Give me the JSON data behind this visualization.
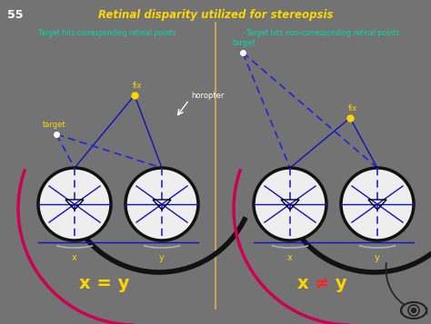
{
  "bg_color": "#737373",
  "title": "Retinal disparity utilized for stereopsis",
  "title_color": "#FFD700",
  "slide_num": "55",
  "slide_num_color": "#FFFFFF",
  "left_caption": "Target hits corresponding retinal points",
  "right_caption": "Target hits non-corresponding retinal points",
  "caption_color": "#00DDAA",
  "equation_color": "#FFD700",
  "eq_neq_color": "#FF2222",
  "divider_color": "#C8A060",
  "eye_fill": "#EEEEEE",
  "eye_outline": "#111111",
  "fix_color": "#FFD700",
  "target_left_color": "#FFFFFF",
  "horopter_color": "#CC0055",
  "line_blue_solid": "#1111BB",
  "line_blue_dash": "#2222DD",
  "label_yellow": "#FFD700",
  "label_white": "#FFFFFF",
  "label_cyan": "#00DDAA"
}
